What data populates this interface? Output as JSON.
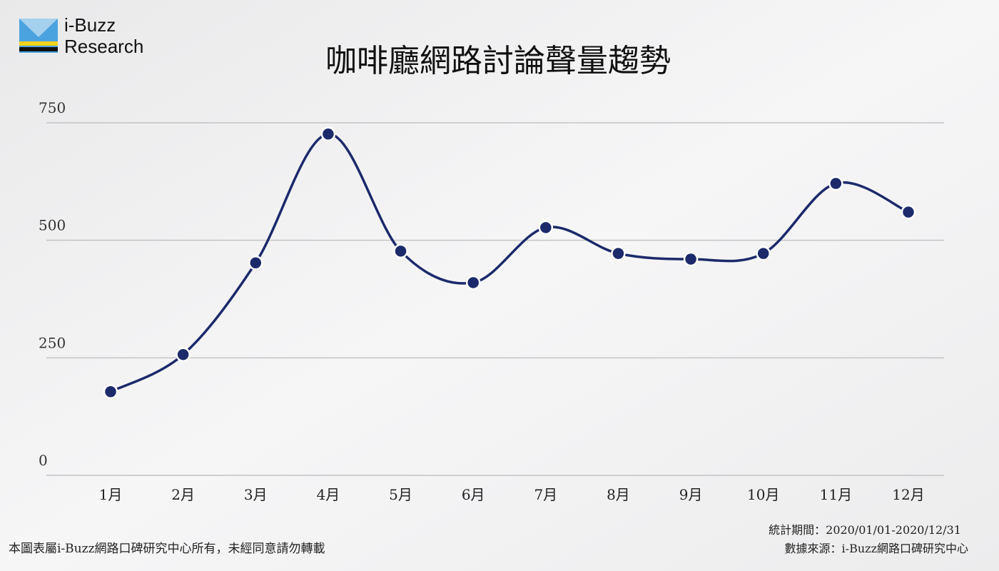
{
  "chart_data": {
    "type": "line",
    "title": "咖啡廳網路討論聲量趨勢",
    "logo": [
      "i-Buzz",
      "Research"
    ],
    "categories": [
      "1月",
      "2月",
      "3月",
      "4月",
      "5月",
      "6月",
      "7月",
      "8月",
      "9月",
      "10月",
      "11月",
      "12月"
    ],
    "values": [
      178,
      257,
      452,
      726,
      477,
      410,
      527,
      472,
      460,
      472,
      621,
      560
    ],
    "color": "#1c2a6b",
    "ylim": [
      0,
      750
    ],
    "yticks": [
      0,
      250,
      500,
      750
    ],
    "grid": true,
    "notes": [
      "統計期間：2020/01/01-2020/12/31",
      "數據來源：i-Buzz網路口碑研究中心"
    ],
    "copyright": "本圖表屬i-Buzz網路口碑研究中心所有，未經同意請勿轉載"
  }
}
